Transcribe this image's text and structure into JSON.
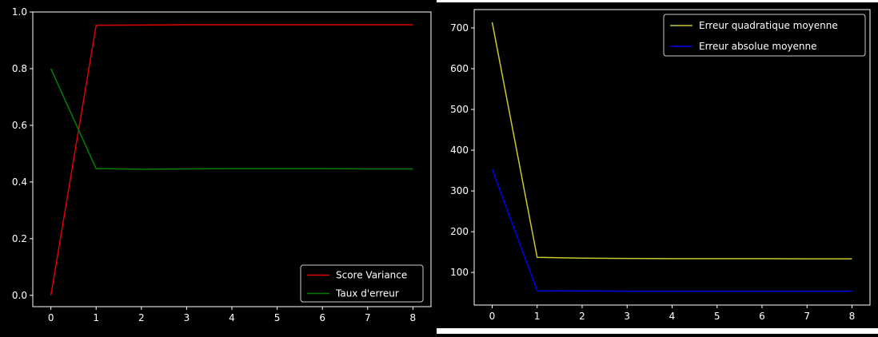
{
  "chart_data": [
    {
      "type": "line",
      "title": "",
      "xlabel": "",
      "ylabel": "",
      "x": [
        0,
        1,
        2,
        3,
        4,
        5,
        6,
        7,
        8
      ],
      "xlim": [
        -0.4,
        8.4
      ],
      "ylim": [
        -0.04,
        1.0
      ],
      "xticks": [
        "0",
        "1",
        "2",
        "3",
        "4",
        "5",
        "6",
        "7",
        "8"
      ],
      "yticks": [
        "0.0",
        "0.2",
        "0.4",
        "0.6",
        "0.8",
        "1.0"
      ],
      "grid": false,
      "legend_position": "lower-right",
      "series": [
        {
          "name": "Score Variance",
          "color": "#e00000",
          "values": [
            0.0,
            0.953,
            0.954,
            0.955,
            0.955,
            0.955,
            0.955,
            0.955,
            0.955
          ]
        },
        {
          "name": "Taux d'erreur",
          "color": "#008000",
          "values": [
            0.8,
            0.447,
            0.445,
            0.446,
            0.447,
            0.447,
            0.447,
            0.446,
            0.446
          ]
        }
      ]
    },
    {
      "type": "line",
      "title": "",
      "xlabel": "",
      "ylabel": "",
      "x": [
        0,
        1,
        2,
        3,
        4,
        5,
        6,
        7,
        8
      ],
      "xlim": [
        -0.4,
        8.4
      ],
      "ylim": [
        20,
        745
      ],
      "xticks": [
        "0",
        "1",
        "2",
        "3",
        "4",
        "5",
        "6",
        "7",
        "8"
      ],
      "yticks": [
        "100",
        "200",
        "300",
        "400",
        "500",
        "600",
        "700"
      ],
      "grid": false,
      "legend_position": "top-right",
      "series": [
        {
          "name": "Erreur quadratique moyenne",
          "color": "#c8c832",
          "values": [
            714,
            137,
            135,
            134.5,
            134,
            134,
            134,
            133.5,
            133.5
          ]
        },
        {
          "name": "Erreur absolue moyenne",
          "color": "#0000ee",
          "values": [
            353,
            55,
            54.5,
            54,
            54,
            54,
            54,
            54,
            54
          ]
        }
      ]
    }
  ]
}
